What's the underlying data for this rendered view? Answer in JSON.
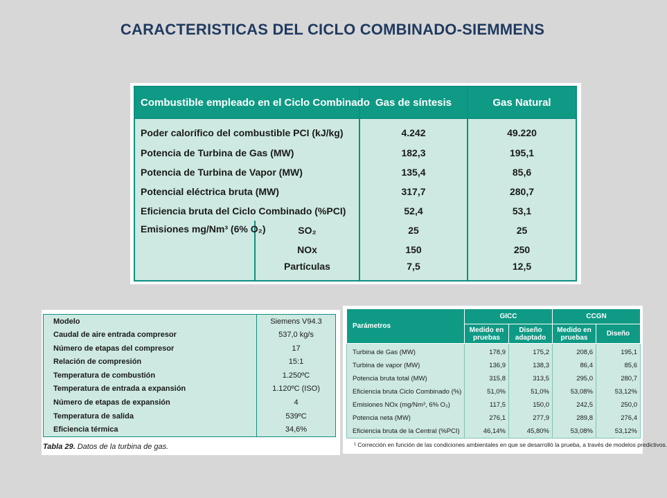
{
  "title": "CARACTERISTICAS DEL CICLO COMBINADO-SIEMMENS",
  "main_table": {
    "headers": [
      "Combustible empleado en el Ciclo Combinado",
      "Gas de síntesis",
      "Gas Natural"
    ],
    "rows": [
      {
        "label": "Poder calorífico del combustible PCI (kJ/kg)",
        "gas_sintesis": "4.242",
        "gas_natural": "49.220"
      },
      {
        "label": "Potencia de Turbina de Gas (MW)",
        "gas_sintesis": "182,3",
        "gas_natural": "195,1"
      },
      {
        "label": "Potencia de Turbina de Vapor (MW)",
        "gas_sintesis": "135,4",
        "gas_natural": "85,6"
      },
      {
        "label": "Potencial eléctrica bruta (MW)",
        "gas_sintesis": "317,7",
        "gas_natural": "280,7"
      },
      {
        "label": "Eficiencia bruta del Ciclo Combinado (%PCI)",
        "gas_sintesis": "52,4",
        "gas_natural": "53,1"
      }
    ],
    "emissions_label": "Emisiones mg/Nm³ (6% O₂)",
    "emissions": [
      {
        "sub": "SO₂",
        "gas_sintesis": "25",
        "gas_natural": "25"
      },
      {
        "sub": "NOx",
        "gas_sintesis": "150",
        "gas_natural": "250"
      },
      {
        "sub": "Partículas",
        "gas_sintesis": "7,5",
        "gas_natural": "12,5"
      }
    ]
  },
  "turbine_table": {
    "rows": [
      {
        "label": "Modelo",
        "value": "Siemens V94.3"
      },
      {
        "label": "Caudal de aire entrada compresor",
        "value": "537,0 kg/s"
      },
      {
        "label": "Número de etapas del compresor",
        "value": "17"
      },
      {
        "label": "Relación de compresión",
        "value": "15:1"
      },
      {
        "label": "Temperatura de combustión",
        "value": "1.250ºC"
      },
      {
        "label": "Temperatura de entrada a expansión",
        "value": "1.120ºC (ISO)"
      },
      {
        "label": "Número de etapas de expansión",
        "value": "4"
      },
      {
        "label": "Temperatura de salida",
        "value": "539ºC"
      },
      {
        "label": "Eficiencia térmica",
        "value": "34,6%"
      }
    ],
    "caption_bold": "Tabla 29.",
    "caption_text": " Datos de la turbina de gas."
  },
  "comparison_table": {
    "param_header": "Parámetros",
    "group_gicc": "GICC",
    "group_ccgn": "CCGN",
    "sub_headers": [
      "Medido en pruebas",
      "Diseño adaptado",
      "Medido en pruebas",
      "Diseño"
    ],
    "rows": [
      {
        "label": "Turbina de Gas (MW)",
        "v": [
          "178,9",
          "175,2",
          "208,6",
          "195,1"
        ]
      },
      {
        "label": "Turbina de vapor (MW)",
        "v": [
          "136,9",
          "138,3",
          "86,4",
          "85,6"
        ]
      },
      {
        "label": "Potencia bruta total (MW)",
        "v": [
          "315,8",
          "313,5",
          "295,0",
          "280,7"
        ]
      },
      {
        "label": "Eficiencia bruta Ciclo Combinado (%)",
        "v": [
          "51,0%",
          "51,0%",
          "53,08%",
          "53,12%"
        ]
      },
      {
        "label": "Emisiones NOx (mg/Nm³, 6% O₂)",
        "v": [
          "117,5",
          "150,0",
          "242,5",
          "250,0"
        ]
      },
      {
        "label": "Potencia neta (MW)",
        "v": [
          "276,1",
          "277,9",
          "289,8",
          "276,4"
        ]
      },
      {
        "label": "Eficiencia bruta de la Central (%PCI)",
        "v": [
          "46,14%",
          "45,80%",
          "53,08%",
          "53,12%"
        ]
      }
    ],
    "footnote": "¹ Corrección en función de las condiciones ambientales en que se desarrolló la prueba, a través de modelos predictivos."
  }
}
